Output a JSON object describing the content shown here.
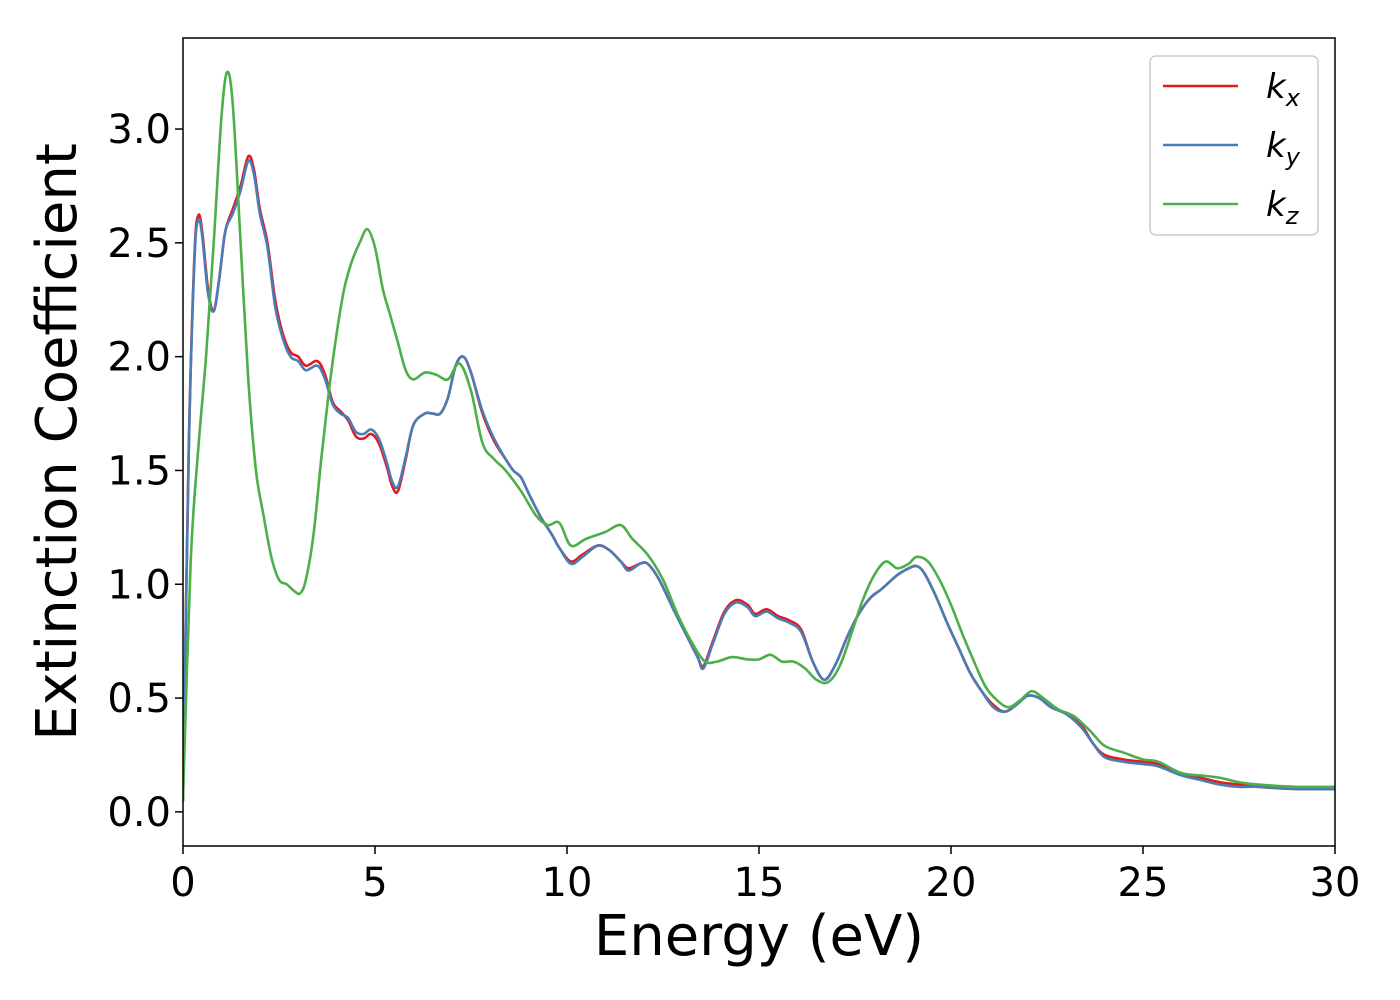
{
  "chart_data": {
    "type": "line",
    "xlabel": "Energy (eV)",
    "ylabel": "Extinction Coefficient",
    "xlim": [
      0,
      30
    ],
    "ylim": [
      -0.15,
      3.4
    ],
    "grid": false,
    "legend_placement": "top-right",
    "xticks": [
      0,
      5,
      10,
      15,
      20,
      25,
      30
    ],
    "xtick_labels": [
      "0",
      "5",
      "10",
      "15",
      "20",
      "25",
      "30"
    ],
    "yticks": [
      0.0,
      0.5,
      1.0,
      1.5,
      2.0,
      2.5,
      3.0
    ],
    "ytick_labels": [
      "0.0",
      "0.5",
      "1.0",
      "1.5",
      "2.0",
      "2.5",
      "3.0"
    ],
    "series": [
      {
        "name": "k",
        "subscript": "x",
        "color": "#e41a1c",
        "points": [
          [
            0,
            0.05
          ],
          [
            0.15,
            1.6
          ],
          [
            0.3,
            2.45
          ],
          [
            0.4,
            2.62
          ],
          [
            0.5,
            2.55
          ],
          [
            0.65,
            2.3
          ],
          [
            0.8,
            2.2
          ],
          [
            0.95,
            2.35
          ],
          [
            1.1,
            2.55
          ],
          [
            1.3,
            2.65
          ],
          [
            1.5,
            2.75
          ],
          [
            1.7,
            2.88
          ],
          [
            1.85,
            2.82
          ],
          [
            2.0,
            2.65
          ],
          [
            2.2,
            2.5
          ],
          [
            2.4,
            2.25
          ],
          [
            2.6,
            2.1
          ],
          [
            2.8,
            2.02
          ],
          [
            3.0,
            2.0
          ],
          [
            3.2,
            1.96
          ],
          [
            3.5,
            1.98
          ],
          [
            3.7,
            1.92
          ],
          [
            3.9,
            1.8
          ],
          [
            4.1,
            1.76
          ],
          [
            4.3,
            1.72
          ],
          [
            4.5,
            1.65
          ],
          [
            4.7,
            1.64
          ],
          [
            4.9,
            1.66
          ],
          [
            5.1,
            1.62
          ],
          [
            5.3,
            1.52
          ],
          [
            5.45,
            1.43
          ],
          [
            5.6,
            1.41
          ],
          [
            5.8,
            1.55
          ],
          [
            6.0,
            1.7
          ],
          [
            6.3,
            1.75
          ],
          [
            6.5,
            1.75
          ],
          [
            6.7,
            1.75
          ],
          [
            6.9,
            1.82
          ],
          [
            7.1,
            1.96
          ],
          [
            7.3,
            2.0
          ],
          [
            7.5,
            1.93
          ],
          [
            7.8,
            1.75
          ],
          [
            8.1,
            1.63
          ],
          [
            8.4,
            1.55
          ],
          [
            8.6,
            1.5
          ],
          [
            8.8,
            1.47
          ],
          [
            9.0,
            1.4
          ],
          [
            9.3,
            1.3
          ],
          [
            9.6,
            1.22
          ],
          [
            9.8,
            1.16
          ],
          [
            10.1,
            1.1
          ],
          [
            10.4,
            1.13
          ],
          [
            10.8,
            1.17
          ],
          [
            11.1,
            1.15
          ],
          [
            11.4,
            1.1
          ],
          [
            11.6,
            1.07
          ],
          [
            11.9,
            1.09
          ],
          [
            12.1,
            1.09
          ],
          [
            12.4,
            1.02
          ],
          [
            12.8,
            0.88
          ],
          [
            13.1,
            0.78
          ],
          [
            13.4,
            0.68
          ],
          [
            13.55,
            0.64
          ],
          [
            13.8,
            0.75
          ],
          [
            14.1,
            0.88
          ],
          [
            14.4,
            0.93
          ],
          [
            14.7,
            0.91
          ],
          [
            14.9,
            0.87
          ],
          [
            15.2,
            0.89
          ],
          [
            15.5,
            0.86
          ],
          [
            15.8,
            0.84
          ],
          [
            16.1,
            0.8
          ],
          [
            16.4,
            0.66
          ],
          [
            16.7,
            0.58
          ],
          [
            17.0,
            0.65
          ],
          [
            17.3,
            0.77
          ],
          [
            17.6,
            0.87
          ],
          [
            17.9,
            0.94
          ],
          [
            18.2,
            0.98
          ],
          [
            18.6,
            1.04
          ],
          [
            18.9,
            1.07
          ],
          [
            19.1,
            1.08
          ],
          [
            19.3,
            1.05
          ],
          [
            19.6,
            0.95
          ],
          [
            19.9,
            0.83
          ],
          [
            20.2,
            0.72
          ],
          [
            20.5,
            0.61
          ],
          [
            20.8,
            0.53
          ],
          [
            21.1,
            0.47
          ],
          [
            21.4,
            0.44
          ],
          [
            21.7,
            0.47
          ],
          [
            22.0,
            0.51
          ],
          [
            22.3,
            0.5
          ],
          [
            22.6,
            0.46
          ],
          [
            23.0,
            0.43
          ],
          [
            23.4,
            0.38
          ],
          [
            23.7,
            0.3
          ],
          [
            24.0,
            0.25
          ],
          [
            24.5,
            0.23
          ],
          [
            25.0,
            0.22
          ],
          [
            25.4,
            0.21
          ],
          [
            26.0,
            0.17
          ],
          [
            26.5,
            0.15
          ],
          [
            27.0,
            0.13
          ],
          [
            27.5,
            0.12
          ],
          [
            28.0,
            0.11
          ],
          [
            29.0,
            0.1
          ],
          [
            30.0,
            0.1
          ]
        ]
      },
      {
        "name": "k",
        "subscript": "y",
        "color": "#4a7db5",
        "points": [
          [
            0,
            0.05
          ],
          [
            0.15,
            1.58
          ],
          [
            0.3,
            2.43
          ],
          [
            0.4,
            2.6
          ],
          [
            0.5,
            2.53
          ],
          [
            0.65,
            2.28
          ],
          [
            0.8,
            2.2
          ],
          [
            0.95,
            2.35
          ],
          [
            1.1,
            2.55
          ],
          [
            1.3,
            2.63
          ],
          [
            1.5,
            2.73
          ],
          [
            1.7,
            2.86
          ],
          [
            1.85,
            2.8
          ],
          [
            2.0,
            2.63
          ],
          [
            2.2,
            2.48
          ],
          [
            2.4,
            2.22
          ],
          [
            2.6,
            2.08
          ],
          [
            2.8,
            2.0
          ],
          [
            3.0,
            1.98
          ],
          [
            3.2,
            1.94
          ],
          [
            3.5,
            1.96
          ],
          [
            3.7,
            1.9
          ],
          [
            3.9,
            1.79
          ],
          [
            4.1,
            1.75
          ],
          [
            4.3,
            1.73
          ],
          [
            4.5,
            1.67
          ],
          [
            4.7,
            1.66
          ],
          [
            4.9,
            1.68
          ],
          [
            5.1,
            1.64
          ],
          [
            5.3,
            1.54
          ],
          [
            5.45,
            1.45
          ],
          [
            5.6,
            1.43
          ],
          [
            5.8,
            1.56
          ],
          [
            6.0,
            1.7
          ],
          [
            6.3,
            1.75
          ],
          [
            6.5,
            1.75
          ],
          [
            6.7,
            1.75
          ],
          [
            6.9,
            1.82
          ],
          [
            7.1,
            1.96
          ],
          [
            7.3,
            2.0
          ],
          [
            7.5,
            1.93
          ],
          [
            7.8,
            1.76
          ],
          [
            8.1,
            1.64
          ],
          [
            8.4,
            1.55
          ],
          [
            8.6,
            1.5
          ],
          [
            8.8,
            1.47
          ],
          [
            9.0,
            1.4
          ],
          [
            9.3,
            1.3
          ],
          [
            9.6,
            1.22
          ],
          [
            9.8,
            1.16
          ],
          [
            10.1,
            1.09
          ],
          [
            10.4,
            1.12
          ],
          [
            10.8,
            1.17
          ],
          [
            11.1,
            1.15
          ],
          [
            11.4,
            1.1
          ],
          [
            11.6,
            1.06
          ],
          [
            11.9,
            1.09
          ],
          [
            12.1,
            1.09
          ],
          [
            12.4,
            1.02
          ],
          [
            12.8,
            0.88
          ],
          [
            13.1,
            0.78
          ],
          [
            13.4,
            0.68
          ],
          [
            13.55,
            0.63
          ],
          [
            13.8,
            0.74
          ],
          [
            14.1,
            0.87
          ],
          [
            14.4,
            0.92
          ],
          [
            14.7,
            0.9
          ],
          [
            14.9,
            0.86
          ],
          [
            15.2,
            0.88
          ],
          [
            15.5,
            0.85
          ],
          [
            15.8,
            0.83
          ],
          [
            16.1,
            0.79
          ],
          [
            16.4,
            0.66
          ],
          [
            16.7,
            0.58
          ],
          [
            17.0,
            0.65
          ],
          [
            17.3,
            0.77
          ],
          [
            17.6,
            0.87
          ],
          [
            17.9,
            0.94
          ],
          [
            18.2,
            0.98
          ],
          [
            18.6,
            1.04
          ],
          [
            18.9,
            1.07
          ],
          [
            19.1,
            1.08
          ],
          [
            19.3,
            1.05
          ],
          [
            19.6,
            0.95
          ],
          [
            19.9,
            0.83
          ],
          [
            20.2,
            0.72
          ],
          [
            20.5,
            0.61
          ],
          [
            20.8,
            0.53
          ],
          [
            21.1,
            0.46
          ],
          [
            21.4,
            0.44
          ],
          [
            21.7,
            0.47
          ],
          [
            22.0,
            0.51
          ],
          [
            22.3,
            0.5
          ],
          [
            22.6,
            0.46
          ],
          [
            23.0,
            0.43
          ],
          [
            23.4,
            0.37
          ],
          [
            23.7,
            0.3
          ],
          [
            24.0,
            0.24
          ],
          [
            24.5,
            0.22
          ],
          [
            25.0,
            0.21
          ],
          [
            25.4,
            0.2
          ],
          [
            26.0,
            0.16
          ],
          [
            26.5,
            0.14
          ],
          [
            27.0,
            0.12
          ],
          [
            27.5,
            0.11
          ],
          [
            28.0,
            0.11
          ],
          [
            29.0,
            0.1
          ],
          [
            30.0,
            0.1
          ]
        ]
      },
      {
        "name": "k",
        "subscript": "z",
        "color": "#4daf4a",
        "points": [
          [
            0,
            0.05
          ],
          [
            0.2,
            1.1
          ],
          [
            0.4,
            1.6
          ],
          [
            0.6,
            2.0
          ],
          [
            0.8,
            2.5
          ],
          [
            1.0,
            3.05
          ],
          [
            1.15,
            3.25
          ],
          [
            1.3,
            3.1
          ],
          [
            1.5,
            2.5
          ],
          [
            1.7,
            1.9
          ],
          [
            1.9,
            1.5
          ],
          [
            2.1,
            1.3
          ],
          [
            2.3,
            1.12
          ],
          [
            2.5,
            1.02
          ],
          [
            2.7,
            1.0
          ],
          [
            2.9,
            0.97
          ],
          [
            3.05,
            0.96
          ],
          [
            3.2,
            1.02
          ],
          [
            3.4,
            1.22
          ],
          [
            3.6,
            1.55
          ],
          [
            3.8,
            1.85
          ],
          [
            4.0,
            2.1
          ],
          [
            4.2,
            2.3
          ],
          [
            4.4,
            2.42
          ],
          [
            4.6,
            2.5
          ],
          [
            4.8,
            2.56
          ],
          [
            5.0,
            2.48
          ],
          [
            5.2,
            2.3
          ],
          [
            5.4,
            2.18
          ],
          [
            5.6,
            2.06
          ],
          [
            5.8,
            1.94
          ],
          [
            6.0,
            1.9
          ],
          [
            6.3,
            1.93
          ],
          [
            6.6,
            1.92
          ],
          [
            6.9,
            1.9
          ],
          [
            7.2,
            1.97
          ],
          [
            7.5,
            1.85
          ],
          [
            7.8,
            1.62
          ],
          [
            8.1,
            1.55
          ],
          [
            8.4,
            1.5
          ],
          [
            8.8,
            1.41
          ],
          [
            9.2,
            1.3
          ],
          [
            9.5,
            1.26
          ],
          [
            9.8,
            1.27
          ],
          [
            10.1,
            1.17
          ],
          [
            10.5,
            1.2
          ],
          [
            11.0,
            1.23
          ],
          [
            11.4,
            1.26
          ],
          [
            11.7,
            1.2
          ],
          [
            12.1,
            1.13
          ],
          [
            12.5,
            1.02
          ],
          [
            12.9,
            0.86
          ],
          [
            13.3,
            0.73
          ],
          [
            13.6,
            0.66
          ],
          [
            13.9,
            0.66
          ],
          [
            14.3,
            0.68
          ],
          [
            14.7,
            0.67
          ],
          [
            15.0,
            0.67
          ],
          [
            15.3,
            0.69
          ],
          [
            15.6,
            0.66
          ],
          [
            15.9,
            0.66
          ],
          [
            16.2,
            0.63
          ],
          [
            16.5,
            0.58
          ],
          [
            16.8,
            0.57
          ],
          [
            17.1,
            0.64
          ],
          [
            17.4,
            0.78
          ],
          [
            17.7,
            0.93
          ],
          [
            18.0,
            1.04
          ],
          [
            18.3,
            1.1
          ],
          [
            18.6,
            1.07
          ],
          [
            18.9,
            1.09
          ],
          [
            19.1,
            1.12
          ],
          [
            19.4,
            1.1
          ],
          [
            19.7,
            1.02
          ],
          [
            20.0,
            0.91
          ],
          [
            20.3,
            0.78
          ],
          [
            20.6,
            0.66
          ],
          [
            20.9,
            0.55
          ],
          [
            21.2,
            0.49
          ],
          [
            21.5,
            0.46
          ],
          [
            21.8,
            0.49
          ],
          [
            22.1,
            0.53
          ],
          [
            22.4,
            0.5
          ],
          [
            22.8,
            0.45
          ],
          [
            23.2,
            0.42
          ],
          [
            23.6,
            0.36
          ],
          [
            24.0,
            0.29
          ],
          [
            24.5,
            0.26
          ],
          [
            25.0,
            0.23
          ],
          [
            25.4,
            0.22
          ],
          [
            26.0,
            0.17
          ],
          [
            26.5,
            0.16
          ],
          [
            27.0,
            0.15
          ],
          [
            27.5,
            0.13
          ],
          [
            28.0,
            0.12
          ],
          [
            29.0,
            0.11
          ],
          [
            30.0,
            0.11
          ]
        ]
      }
    ]
  }
}
